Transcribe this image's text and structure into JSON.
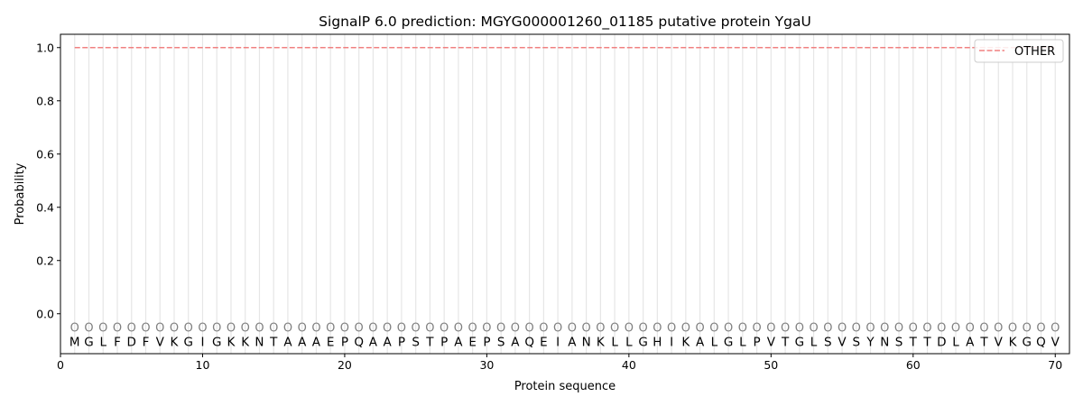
{
  "chart_data": {
    "type": "line",
    "title": "SignalP 6.0 prediction: MGYG000001260_01185 putative protein YgaU",
    "xlabel": "Protein sequence",
    "ylabel": "Probability",
    "xlim": [
      0,
      71
    ],
    "ylim": [
      -0.15,
      1.05
    ],
    "xticks": [
      0,
      10,
      20,
      30,
      40,
      50,
      60,
      70
    ],
    "yticks": [
      0.0,
      0.2,
      0.4,
      0.6,
      0.8,
      1.0
    ],
    "ytick_labels": [
      "0.0",
      "0.2",
      "0.4",
      "0.6",
      "0.8",
      "1.0"
    ],
    "legend_position": "top-right",
    "sequence": [
      "M",
      "G",
      "L",
      "F",
      "D",
      "F",
      "V",
      "K",
      "G",
      "I",
      "G",
      "K",
      "K",
      "N",
      "T",
      "A",
      "A",
      "A",
      "E",
      "P",
      "Q",
      "A",
      "A",
      "P",
      "S",
      "T",
      "P",
      "A",
      "E",
      "P",
      "S",
      "A",
      "Q",
      "E",
      "I",
      "A",
      "N",
      "K",
      "L",
      "L",
      "G",
      "H",
      "I",
      "K",
      "A",
      "L",
      "G",
      "L",
      "P",
      "V",
      "T",
      "G",
      "L",
      "S",
      "V",
      "S",
      "Y",
      "N",
      "S",
      "T",
      "T",
      "D",
      "L",
      "A",
      "T",
      "V",
      "K",
      "G",
      "Q",
      "V"
    ],
    "predicted_label": "O",
    "series": [
      {
        "name": "OTHER",
        "color": "#f08080",
        "style": "dashed",
        "x_range": [
          1,
          70
        ],
        "value": 1.0
      }
    ]
  }
}
